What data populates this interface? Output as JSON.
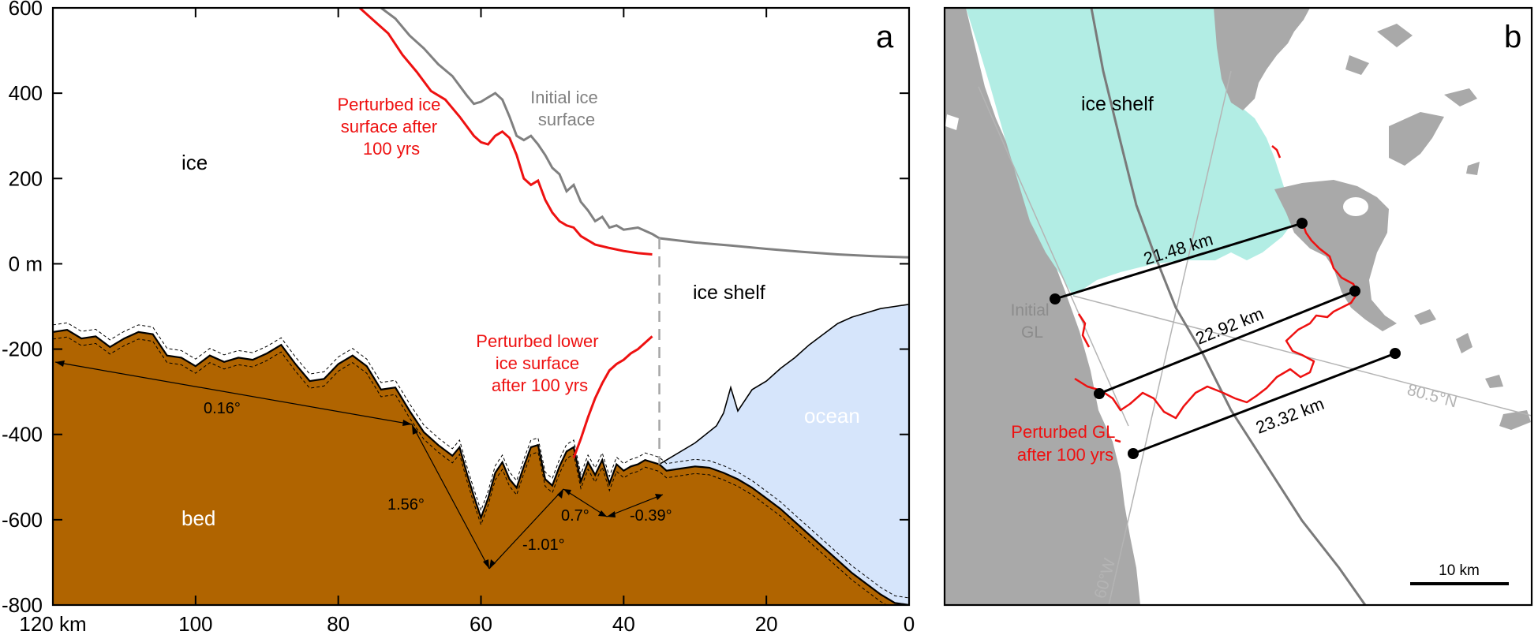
{
  "panel_a": {
    "letter": "a",
    "labels": {
      "ice": "ice",
      "bed": "bed",
      "ice_shelf": "ice shelf",
      "ocean": "ocean",
      "initial_surface": [
        "Initial ice",
        "surface"
      ],
      "perturbed_surface": [
        "Perturbed ice",
        "surface after",
        "100 yrs"
      ],
      "perturbed_lower": [
        "Perturbed lower",
        "ice surface",
        "after 100 yrs"
      ]
    },
    "angles": [
      "0.16°",
      "1.56°",
      "-1.01°",
      "0.7°",
      "-0.39°"
    ],
    "colors": {
      "bed": "#b06400",
      "ocean": "#d6e5fb",
      "initial": "#808080",
      "perturbed": "#ee1111",
      "outline": "#000000"
    }
  },
  "chart_data": {
    "type": "line",
    "xlim": [
      120,
      0
    ],
    "ylim": [
      -800,
      600
    ],
    "x_ticks": [
      "120 km",
      "100",
      "80",
      "60",
      "40",
      "20",
      "0"
    ],
    "y_ticks": [
      "600",
      "400",
      "200",
      "0 m",
      "-200",
      "-400",
      "-600",
      "-800"
    ],
    "series": [
      {
        "name": "Initial ice surface",
        "x": [
          74,
          72,
          70,
          68,
          66,
          64,
          62,
          61,
          60,
          59,
          58,
          57,
          56,
          55,
          54,
          53,
          52,
          51,
          50,
          49,
          48,
          47,
          46,
          45,
          44,
          43,
          42,
          41,
          40,
          38,
          36,
          35,
          30,
          25,
          20,
          15,
          10,
          5,
          0
        ],
        "y": [
          600,
          575,
          535,
          505,
          468,
          440,
          395,
          375,
          380,
          390,
          400,
          385,
          345,
          300,
          290,
          300,
          280,
          255,
          225,
          210,
          170,
          185,
          145,
          125,
          100,
          110,
          85,
          90,
          80,
          85,
          70,
          60,
          50,
          43,
          35,
          28,
          22,
          18,
          15
        ]
      },
      {
        "name": "Perturbed ice surface after 100 yrs",
        "x": [
          77,
          75,
          73,
          71,
          69,
          67,
          65,
          63,
          61,
          60,
          59,
          58,
          57,
          56,
          55,
          54,
          53,
          52,
          51,
          50,
          49,
          48,
          47,
          46,
          45,
          44,
          42,
          40,
          38,
          36
        ],
        "y": [
          600,
          570,
          540,
          490,
          450,
          405,
          385,
          345,
          300,
          285,
          280,
          300,
          310,
          295,
          255,
          200,
          185,
          195,
          150,
          120,
          100,
          90,
          85,
          65,
          55,
          45,
          37,
          30,
          25,
          22
        ]
      },
      {
        "name": "Perturbed lower ice surface after 100 yrs",
        "x": [
          47,
          46,
          45,
          44,
          43,
          42,
          41,
          40,
          39,
          38,
          37,
          36
        ],
        "y": [
          -455,
          -410,
          -360,
          -315,
          -280,
          -250,
          -235,
          -225,
          -210,
          -200,
          -185,
          -170
        ]
      },
      {
        "name": "Bed",
        "x": [
          120,
          118,
          116,
          114,
          112,
          110,
          108,
          106,
          104,
          102,
          100,
          98,
          96,
          94,
          92,
          90,
          88,
          86,
          84,
          82,
          80,
          78,
          76,
          74,
          72,
          70,
          68,
          66,
          64,
          63,
          62,
          61,
          60,
          59,
          58,
          57,
          56,
          55,
          54,
          53,
          52,
          51,
          50,
          49,
          48,
          47,
          46,
          45,
          44,
          43,
          42,
          41,
          40,
          39,
          38,
          37,
          36,
          35,
          34,
          32,
          30,
          28,
          26,
          24,
          22,
          20,
          18,
          16,
          14,
          12,
          10,
          8,
          6,
          4,
          2,
          0
        ],
        "y": [
          -160,
          -155,
          -175,
          -170,
          -195,
          -175,
          -160,
          -165,
          -215,
          -220,
          -240,
          -215,
          -230,
          -220,
          -225,
          -210,
          -190,
          -235,
          -275,
          -270,
          -235,
          -215,
          -240,
          -295,
          -290,
          -345,
          -395,
          -425,
          -450,
          -430,
          -490,
          -545,
          -595,
          -550,
          -490,
          -465,
          -505,
          -525,
          -475,
          -430,
          -425,
          -505,
          -520,
          -475,
          -440,
          -430,
          -510,
          -465,
          -495,
          -460,
          -515,
          -470,
          -485,
          -475,
          -470,
          -460,
          -465,
          -470,
          -485,
          -480,
          -475,
          -478,
          -490,
          -505,
          -525,
          -550,
          -575,
          -605,
          -635,
          -665,
          -695,
          -725,
          -750,
          -775,
          -795,
          -800
        ]
      },
      {
        "name": "Shelf base",
        "x": [
          35,
          30,
          27,
          26,
          25,
          24,
          22,
          20,
          18,
          16,
          14,
          12,
          10,
          8,
          6,
          4,
          2,
          0
        ],
        "y": [
          -470,
          -420,
          -380,
          -350,
          -290,
          -345,
          -295,
          -275,
          -245,
          -220,
          -190,
          -165,
          -140,
          -125,
          -115,
          -105,
          -100,
          -95
        ]
      }
    ]
  },
  "panel_b": {
    "letter": "b",
    "labels": {
      "ice_shelf": "ice shelf",
      "initial_gl": [
        "Initial",
        "GL"
      ],
      "perturbed_gl": [
        "Perturbed GL",
        "after 100 yrs"
      ],
      "lat": "80.5°N",
      "lon": "60°W",
      "scale": "10 km"
    },
    "distances": [
      "21.48 km",
      "22.92 km",
      "23.32 km"
    ],
    "colors": {
      "land": "#a9a9a9",
      "ice_shelf": "#b2ede4",
      "water": "#ffffff",
      "gl": "#ee1111",
      "graticule": "#b4b4b4",
      "flowline": "#7a7a7a"
    }
  }
}
